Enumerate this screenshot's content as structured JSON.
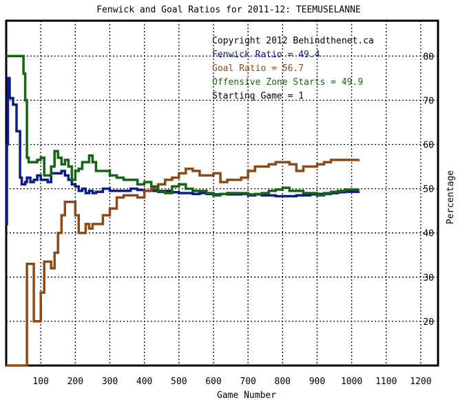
{
  "chart_data": {
    "type": "line",
    "title": "Fenwick and Goal Ratios for 2011-12: TEEMUSELANNE",
    "xlabel": "Game Number",
    "ylabel": "Percentage",
    "xlim": [
      0,
      1250
    ],
    "ylim": [
      10,
      88
    ],
    "xticks": [
      100,
      200,
      300,
      400,
      500,
      600,
      700,
      800,
      900,
      1000,
      1100,
      1200
    ],
    "xtick_labels": [
      "100",
      "200",
      "300",
      "400",
      "500",
      "600",
      "700",
      "800",
      "900",
      "1000",
      "1100",
      "1200"
    ],
    "yticks": [
      20,
      30,
      40,
      50,
      60,
      70,
      80
    ],
    "ytick_labels": [
      "20",
      "30",
      "40",
      "50",
      "60",
      "70",
      "80"
    ],
    "grid": true,
    "annotations": [
      {
        "text": "Copyright 2012 Behindthenet.ca",
        "color": "#000000"
      },
      {
        "text": "Fenwick Ratio = 49.4",
        "color": "#0d1d85"
      },
      {
        "text": "Goal Ratio = 56.7",
        "color": "#8b4a17"
      },
      {
        "text": "Offensive Zone Starts = 49.9",
        "color": "#146614"
      },
      {
        "text": "Starting Game = 1",
        "color": "#000000"
      }
    ],
    "series": [
      {
        "color": "#0d1d85",
        "x": [
          0,
          2,
          5,
          10,
          15,
          20,
          30,
          40,
          45,
          50,
          55,
          60,
          70,
          80,
          90,
          100,
          110,
          120,
          130,
          140,
          150,
          160,
          170,
          180,
          190,
          200,
          210,
          220,
          230,
          240,
          250,
          260,
          280,
          300,
          320,
          340,
          360,
          380,
          400,
          420,
          440,
          460,
          480,
          500,
          520,
          540,
          560,
          580,
          600,
          620,
          640,
          660,
          680,
          700,
          720,
          740,
          760,
          780,
          800,
          820,
          840,
          860,
          880,
          900,
          920,
          940,
          960,
          980,
          1000,
          1020
        ],
        "y": [
          42,
          60,
          75,
          70.5,
          70.5,
          69,
          63,
          52.5,
          51,
          51,
          51.5,
          52.5,
          51.5,
          52,
          53,
          52,
          52,
          51.5,
          53.5,
          53.5,
          53.5,
          54,
          53,
          52,
          51,
          50.5,
          49.5,
          50,
          49,
          49.5,
          49,
          49.3,
          50,
          49.5,
          49.5,
          49.5,
          50,
          49.7,
          49.5,
          49.5,
          49.3,
          49.5,
          49.2,
          49,
          49,
          48.8,
          49,
          48.8,
          48.7,
          48.8,
          48.7,
          48.7,
          48.8,
          48.5,
          48.7,
          48.5,
          48.5,
          48.3,
          48.3,
          48.3,
          48.5,
          48.5,
          48.7,
          48.8,
          48.8,
          49,
          49.2,
          49.3,
          49.3,
          49.4
        ]
      },
      {
        "color": "#8b4a17",
        "x": [
          0,
          55,
          60,
          70,
          80,
          90,
          100,
          110,
          120,
          130,
          140,
          150,
          160,
          170,
          180,
          190,
          200,
          210,
          220,
          230,
          240,
          250,
          260,
          280,
          300,
          320,
          340,
          360,
          380,
          400,
          420,
          440,
          460,
          480,
          500,
          520,
          540,
          560,
          580,
          600,
          620,
          640,
          660,
          680,
          700,
          720,
          740,
          760,
          780,
          800,
          820,
          840,
          860,
          880,
          900,
          920,
          940,
          960,
          980,
          1000,
          1020
        ],
        "y": [
          10,
          10,
          33,
          33,
          20,
          20,
          26.5,
          33.5,
          33.5,
          32,
          35.5,
          40,
          44,
          47,
          47,
          47,
          44,
          40,
          40,
          42,
          41,
          42,
          42,
          44,
          45.5,
          48,
          48.5,
          48.5,
          48,
          49.5,
          50,
          51,
          52,
          52.5,
          53.5,
          54.5,
          54,
          53,
          53,
          53.5,
          51.5,
          52,
          52,
          52.5,
          54,
          55,
          55,
          55.5,
          56,
          56,
          55.5,
          54,
          55,
          55,
          55.5,
          56,
          56.5,
          56.5,
          56.5,
          56.5,
          56.7
        ]
      },
      {
        "color": "#146614",
        "x": [
          0,
          20,
          30,
          40,
          50,
          55,
          60,
          65,
          70,
          80,
          90,
          100,
          110,
          120,
          130,
          140,
          150,
          160,
          170,
          180,
          190,
          200,
          210,
          220,
          230,
          240,
          250,
          260,
          280,
          300,
          320,
          340,
          360,
          380,
          400,
          420,
          440,
          460,
          480,
          500,
          520,
          540,
          560,
          580,
          600,
          620,
          640,
          660,
          680,
          700,
          720,
          740,
          760,
          780,
          800,
          820,
          840,
          860,
          880,
          900,
          920,
          940,
          960,
          980,
          1000,
          1020
        ],
        "y": [
          80,
          80,
          80,
          80,
          76,
          70,
          57,
          56,
          56,
          56,
          56.5,
          57,
          53,
          53,
          55,
          58.5,
          57,
          55.5,
          56.5,
          55,
          52,
          54,
          54.5,
          56,
          56,
          57.5,
          56,
          54,
          54,
          53,
          52.5,
          52,
          52,
          51,
          51.5,
          50.5,
          49.5,
          49,
          50.5,
          51,
          50,
          49.5,
          49.5,
          49,
          48.5,
          48.8,
          49,
          49,
          49,
          48.7,
          48.8,
          49,
          49.5,
          49.8,
          50.2,
          49.5,
          49.5,
          49,
          49,
          48.5,
          49,
          49.3,
          49.5,
          49.8,
          49.8,
          49.9
        ]
      }
    ]
  }
}
